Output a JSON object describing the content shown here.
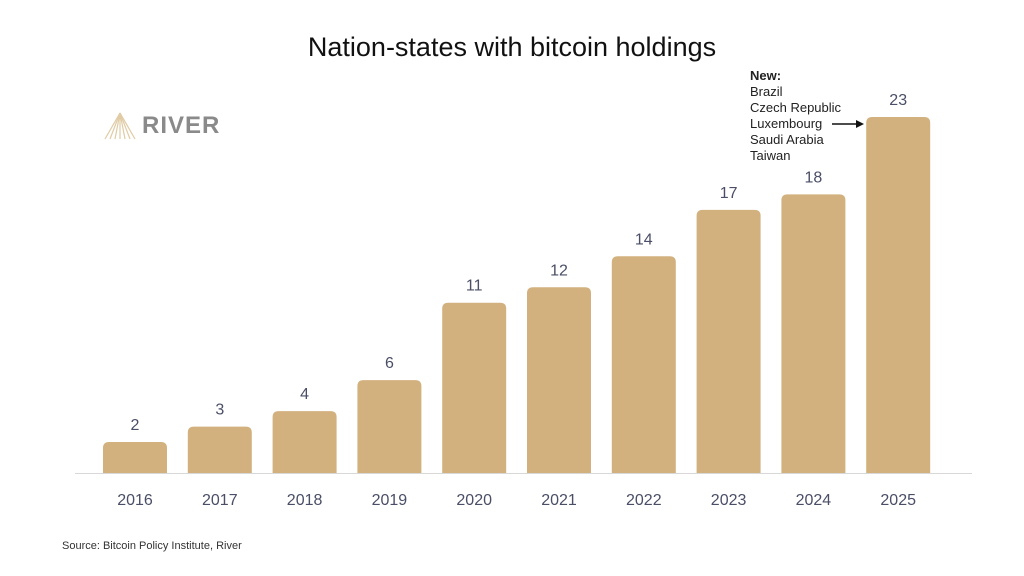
{
  "chart_data": {
    "type": "bar",
    "title": "Nation-states with bitcoin holdings",
    "categories": [
      "2016",
      "2017",
      "2018",
      "2019",
      "2020",
      "2021",
      "2022",
      "2023",
      "2024",
      "2025"
    ],
    "values": [
      2,
      3,
      4,
      6,
      11,
      12,
      14,
      17,
      18,
      23
    ],
    "xlabel": "",
    "ylabel": "",
    "ylim": [
      0,
      23
    ],
    "grid": false,
    "data_labels": true,
    "bar_color": "#d2b17e",
    "annotation": {
      "heading": "New:",
      "items": [
        "Brazil",
        "Czech Republic",
        "Luxembourg",
        "Saudi Arabia",
        "Taiwan"
      ],
      "arrow_to": "2025"
    }
  },
  "logo": {
    "text": "RIVER"
  },
  "source": "Source: Bitcoin Policy Institute, River"
}
